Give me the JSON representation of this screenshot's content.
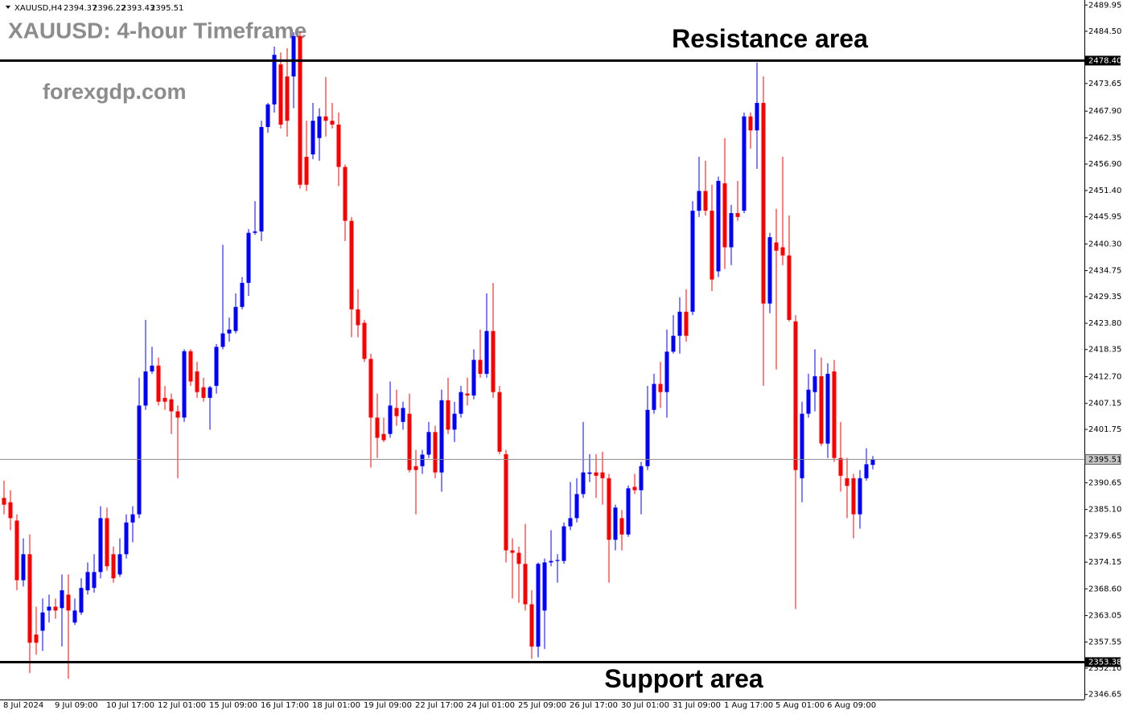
{
  "chart_data": {
    "type": "candlestick",
    "symbol": "XAUUSD,H4",
    "title": "XAUUSD: 4-hour Timeframe",
    "watermark": "forexgdp.com",
    "up_color": "#0000ff",
    "down_color": "#ff0000",
    "categories": [
      "8 Jul 2024",
      null,
      null,
      null,
      null,
      null,
      null,
      null,
      "9 Jul 09:00",
      null,
      null,
      null,
      null,
      null,
      null,
      null,
      "10 Jul 17:00",
      null,
      null,
      null,
      null,
      null,
      null,
      null,
      "12 Jul 01:00",
      null,
      null,
      null,
      null,
      null,
      null,
      null,
      "15 Jul 09:00",
      null,
      null,
      null,
      null,
      null,
      null,
      null,
      "16 Jul 17:00",
      null,
      null,
      null,
      null,
      null,
      null,
      null,
      "18 Jul 01:00",
      null,
      null,
      null,
      null,
      null,
      null,
      null,
      "19 Jul 09:00",
      null,
      null,
      null,
      null,
      null,
      null,
      null,
      "22 Jul 17:00",
      null,
      null,
      null,
      null,
      null,
      null,
      null,
      "24 Jul 01:00",
      null,
      null,
      null,
      null,
      null,
      null,
      null,
      "25 Jul 09:00",
      null,
      null,
      null,
      null,
      null,
      null,
      null,
      "26 Jul 17:00",
      null,
      null,
      null,
      null,
      null,
      null,
      null,
      "30 Jul 01:00",
      null,
      null,
      null,
      null,
      null,
      null,
      null,
      "31 Jul 09:00",
      null,
      null,
      null,
      null,
      null,
      null,
      null,
      "1 Aug 17:00",
      null,
      null,
      null,
      null,
      null,
      null,
      null,
      "5 Aug 01:00",
      null,
      null,
      null,
      null,
      null,
      null,
      null,
      "6 Aug 09:00",
      null,
      null,
      null,
      null,
      null,
      null,
      null
    ],
    "open": [
      2387.5,
      2386.6,
      2382.8,
      2370.4,
      2375.8,
      2359.1,
      2359.9,
      2364.1,
      2364.9,
      2364.6,
      2367.4,
      2361.6,
      2363.7,
      2368.3,
      2368.8,
      2372.1,
      2383.3,
      2375.8,
      2371.6,
      2375.8,
      2382.4,
      2384.1,
      2406.7,
      2413.8,
      2415.0,
      2408.3,
      2408.0,
      2405.5,
      2404.2,
      2418.0,
      2413.8,
      2410.5,
      2408.3,
      2410.8,
      2418.9,
      2421.7,
      2422.2,
      2427.2,
      2432.2,
      2442.6,
      2442.9,
      2464.6,
      2469.3,
      2477.6,
      2475.1,
      2475.1,
      2483.5,
      2458.4,
      2458.9,
      2462.3,
      2466.8,
      2465.9,
      2465.1,
      2456.3,
      2445.1,
      2426.7,
      2423.9,
      2416.4,
      2404.2,
      2400.8,
      2400.8,
      2406.2,
      2403.3,
      2405.0,
      2394.1,
      2394.1,
      2396.5,
      2401.2,
      2392.8,
      2407.8,
      2401.7,
      2405.0,
      2409.2,
      2408.8,
      2416.2,
      2413.3,
      2422.2,
      2409.5,
      2396.6,
      2376.6,
      2376.1,
      2373.8,
      2365.4,
      2356.6,
      2364.1,
      2374.1,
      2374.4,
      2374.4,
      2381.6,
      2383.3,
      2388.3,
      2392.5,
      2392.8,
      2392.8,
      2391.6,
      2378.8,
      2383.3,
      2379.9,
      2389.8,
      2389.1,
      2394.1,
      2405.8,
      2411.2,
      2409.5,
      2417.9,
      2421.2,
      2426.2,
      2426.2,
      2447.2,
      2451.3,
      2447.2,
      2434.6,
      2452.9,
      2439.6,
      2446.7,
      2447.2,
      2466.8,
      2463.9,
      2469.6,
      2427.9,
      2440.6,
      2439.6,
      2437.9,
      2424.2,
      2391.6,
      2405.0,
      2409.5,
      2412.8,
      2398.8,
      2413.8,
      2395.8,
      2391.6,
      2391.6,
      2384.1,
      2391.6,
      2394.37
    ],
    "high": [
      2391.1,
      2389.1,
      2384.1,
      2379.1,
      2379.9,
      2364.9,
      2366.6,
      2367.4,
      2366.6,
      2371.6,
      2371.6,
      2366.6,
      2370.8,
      2374.1,
      2375.8,
      2385.8,
      2385.5,
      2377.4,
      2379.1,
      2384.1,
      2385.8,
      2412.5,
      2424.5,
      2418.9,
      2416.7,
      2410.8,
      2409.2,
      2406.7,
      2418.4,
      2418.4,
      2415.8,
      2412.5,
      2410.8,
      2419.5,
      2440.1,
      2425.0,
      2430.0,
      2433.4,
      2443.4,
      2449.2,
      2465.9,
      2469.6,
      2481.3,
      2480.1,
      2481.0,
      2484.3,
      2484.3,
      2465.9,
      2469.6,
      2468.5,
      2475.0,
      2469.6,
      2467.6,
      2456.8,
      2445.9,
      2430.9,
      2424.5,
      2417.5,
      2409.2,
      2404.2,
      2411.7,
      2410.0,
      2407.5,
      2409.2,
      2397.5,
      2397.5,
      2403.3,
      2402.5,
      2410.0,
      2412.5,
      2407.5,
      2410.8,
      2412.5,
      2418.4,
      2422.5,
      2430.0,
      2432.2,
      2410.8,
      2397.5,
      2379.1,
      2377.4,
      2382.1,
      2368.3,
      2374.1,
      2374.9,
      2380.8,
      2375.8,
      2382.4,
      2390.8,
      2391.6,
      2403.3,
      2396.6,
      2396.6,
      2397.1,
      2392.5,
      2386.1,
      2385.0,
      2390.1,
      2392.5,
      2395.0,
      2410.8,
      2413.3,
      2415.8,
      2422.5,
      2425.5,
      2429.2,
      2430.9,
      2449.2,
      2458.4,
      2457.6,
      2452.6,
      2454.3,
      2462.3,
      2448.4,
      2453.4,
      2467.6,
      2467.6,
      2478.0,
      2475.1,
      2442.6,
      2447.6,
      2458.4,
      2446.2,
      2425.5,
      2407.5,
      2413.3,
      2418.4,
      2416.7,
      2415.5,
      2416.2,
      2403.3,
      2395.8,
      2392.5,
      2393.3,
      2397.8,
      2396.22
    ],
    "low": [
      2384.1,
      2380.8,
      2368.3,
      2369.1,
      2351.1,
      2354.9,
      2355.7,
      2361.6,
      2362.4,
      2356.6,
      2349.9,
      2361.1,
      2363.2,
      2367.4,
      2367.8,
      2370.8,
      2372.4,
      2369.9,
      2371.1,
      2374.9,
      2378.3,
      2383.3,
      2405.8,
      2413.3,
      2406.7,
      2405.8,
      2400.8,
      2391.6,
      2403.3,
      2410.8,
      2408.3,
      2407.5,
      2401.7,
      2409.2,
      2418.4,
      2420.0,
      2421.7,
      2426.7,
      2429.5,
      2442.2,
      2440.9,
      2463.4,
      2467.6,
      2464.3,
      2462.6,
      2468.5,
      2451.8,
      2451.3,
      2457.9,
      2457.6,
      2462.6,
      2464.3,
      2452.3,
      2440.9,
      2420.9,
      2420.9,
      2415.8,
      2393.8,
      2395.8,
      2399.1,
      2400.0,
      2402.5,
      2401.7,
      2392.8,
      2384.1,
      2392.5,
      2395.8,
      2391.6,
      2388.8,
      2400.8,
      2399.1,
      2404.2,
      2406.7,
      2408.0,
      2412.5,
      2412.5,
      2408.3,
      2396.6,
      2374.1,
      2366.6,
      2365.7,
      2364.1,
      2354.1,
      2354.4,
      2356.1,
      2373.3,
      2369.9,
      2373.8,
      2380.8,
      2382.4,
      2387.5,
      2390.8,
      2387.5,
      2386.1,
      2369.9,
      2376.6,
      2376.6,
      2379.4,
      2388.3,
      2384.1,
      2393.3,
      2405.0,
      2406.2,
      2404.2,
      2417.5,
      2417.5,
      2420.0,
      2425.5,
      2445.9,
      2446.2,
      2430.5,
      2433.4,
      2435.1,
      2435.9,
      2445.1,
      2446.7,
      2460.1,
      2455.9,
      2410.8,
      2425.9,
      2414.2,
      2435.9,
      2424.2,
      2364.4,
      2386.6,
      2404.2,
      2405.5,
      2398.3,
      2395.8,
      2395.0,
      2388.8,
      2383.3,
      2379.1,
      2381.1,
      2391.1,
      2393.43
    ],
    "close": [
      2386.1,
      2383.3,
      2370.4,
      2375.8,
      2357.4,
      2357.4,
      2363.7,
      2364.9,
      2364.1,
      2368.3,
      2364.1,
      2364.1,
      2368.8,
      2372.1,
      2372.1,
      2383.3,
      2373.3,
      2370.8,
      2375.8,
      2382.4,
      2384.1,
      2406.7,
      2413.8,
      2415.0,
      2407.5,
      2407.5,
      2405.5,
      2404.2,
      2418.0,
      2411.7,
      2409.5,
      2408.3,
      2410.5,
      2418.9,
      2421.7,
      2422.5,
      2427.2,
      2432.2,
      2442.6,
      2442.9,
      2464.6,
      2469.3,
      2479.6,
      2465.1,
      2465.9,
      2483.5,
      2452.6,
      2452.6,
      2465.9,
      2466.8,
      2465.9,
      2465.1,
      2456.3,
      2445.1,
      2426.7,
      2423.4,
      2416.4,
      2404.2,
      2400.0,
      2399.5,
      2406.7,
      2404.5,
      2406.2,
      2393.3,
      2393.3,
      2396.5,
      2401.2,
      2392.8,
      2407.8,
      2401.7,
      2405.0,
      2409.5,
      2408.8,
      2416.2,
      2413.3,
      2422.2,
      2409.5,
      2397.1,
      2376.6,
      2376.1,
      2373.8,
      2365.4,
      2356.6,
      2373.8,
      2374.1,
      2374.4,
      2374.6,
      2381.6,
      2383.3,
      2388.3,
      2392.8,
      2392.8,
      2392.1,
      2391.6,
      2378.8,
      2385.5,
      2379.9,
      2389.5,
      2389.1,
      2394.1,
      2405.8,
      2411.2,
      2409.5,
      2417.9,
      2421.2,
      2426.2,
      2421.2,
      2447.2,
      2451.3,
      2447.2,
      2432.9,
      2453.4,
      2439.6,
      2446.7,
      2445.9,
      2466.8,
      2463.9,
      2469.6,
      2427.9,
      2441.7,
      2438.9,
      2437.9,
      2424.5,
      2393.3,
      2405.0,
      2410.0,
      2412.8,
      2398.8,
      2413.3,
      2395.8,
      2392.1,
      2390.0,
      2384.1,
      2391.6,
      2394.5,
      2395.51
    ],
    "ylim": [
      2345.6,
      2491.0
    ],
    "yticks": [
      2489.95,
      {
        "value": 2484.5,
        "label": "2484.50"
      },
      2473.65,
      {
        "value": 2467.9,
        "label": "2467.90"
      },
      2462.35,
      {
        "value": 2456.9,
        "label": "2456.90"
      },
      {
        "value": 2451.4,
        "label": "2451.40"
      },
      2445.95,
      {
        "value": 2440.3,
        "label": "2440.30"
      },
      2434.75,
      2429.35,
      {
        "value": 2423.8,
        "label": "2423.80"
      },
      2418.35,
      {
        "value": 2412.7,
        "label": "2412.70"
      },
      2407.15,
      2401.75,
      2390.65,
      {
        "value": 2385.1,
        "label": "2385.10"
      },
      2379.65,
      2374.15,
      {
        "value": 2368.6,
        "label": "2368.60"
      },
      2363.05,
      2357.55,
      {
        "value": 2352.1,
        "label": "2352.10"
      },
      2346.65
    ],
    "levels": [
      {
        "name": "Resistance area",
        "price": {
          "value": 2478.4,
          "label": "2478.40"
        }
      },
      {
        "name": "Support area",
        "price": {
          "value": 2353.38,
          "label": "2353.38"
        }
      }
    ]
  }
}
